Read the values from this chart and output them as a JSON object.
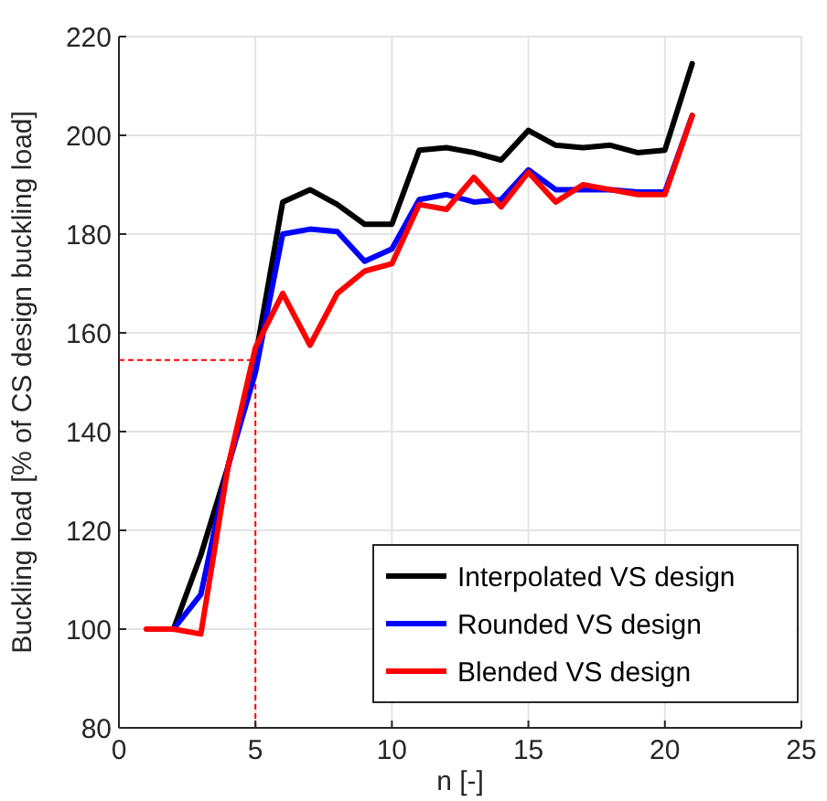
{
  "chart_data": {
    "type": "line",
    "xlabel": "n [-]",
    "ylabel": "Buckling load [% of CS design buckling load]",
    "xlim": [
      0,
      25
    ],
    "xticks": [
      0,
      5,
      10,
      15,
      20,
      25
    ],
    "ylim": [
      80,
      220
    ],
    "yticks": [
      80,
      100,
      120,
      140,
      160,
      180,
      200,
      220
    ],
    "grid": true,
    "legend": "bottom right",
    "line_style": "solid",
    "marker": "none",
    "series": [
      {
        "name": "Interpolated VS design",
        "color": "#000000",
        "x": [
          2,
          3,
          4,
          5,
          6,
          7,
          8,
          9,
          10,
          11,
          12,
          13,
          14,
          15,
          16,
          17,
          18,
          19,
          20,
          21
        ],
        "values": [
          100,
          115,
          133,
          155,
          186.5,
          189,
          186,
          182,
          182,
          197,
          197.5,
          196.5,
          195,
          201,
          198,
          197.5,
          198,
          196.5,
          197,
          214.5
        ]
      },
      {
        "name": "Rounded VS design",
        "color": "#0000ff",
        "x": [
          2,
          3,
          4,
          5,
          6,
          7,
          8,
          9,
          10,
          11,
          12,
          13,
          14,
          15,
          16,
          17,
          18,
          19,
          20,
          21
        ],
        "values": [
          100,
          107,
          133,
          152,
          180,
          181,
          180.5,
          174.5,
          177,
          187,
          188,
          186.5,
          187,
          193,
          189,
          189,
          189,
          188.5,
          188.5,
          204
        ]
      },
      {
        "name": "Blended VS design",
        "color": "#ff0000",
        "x": [
          1,
          2,
          3,
          4,
          5,
          6,
          7,
          8,
          9,
          10,
          11,
          12,
          13,
          14,
          15,
          16,
          17,
          18,
          19,
          20,
          21
        ],
        "values": [
          100,
          100,
          99,
          133,
          157,
          168,
          157.5,
          168,
          172.5,
          174,
          186,
          185,
          191.5,
          185.5,
          192.5,
          186.5,
          190,
          189,
          188,
          188,
          204
        ]
      }
    ],
    "ref_lines": [
      {
        "axis": "x",
        "value": 5,
        "color": "#ff0000",
        "line_style": "dashed"
      },
      {
        "axis": "y",
        "value": 154.5,
        "color": "#ff0000",
        "line_style": "dashed"
      }
    ]
  }
}
